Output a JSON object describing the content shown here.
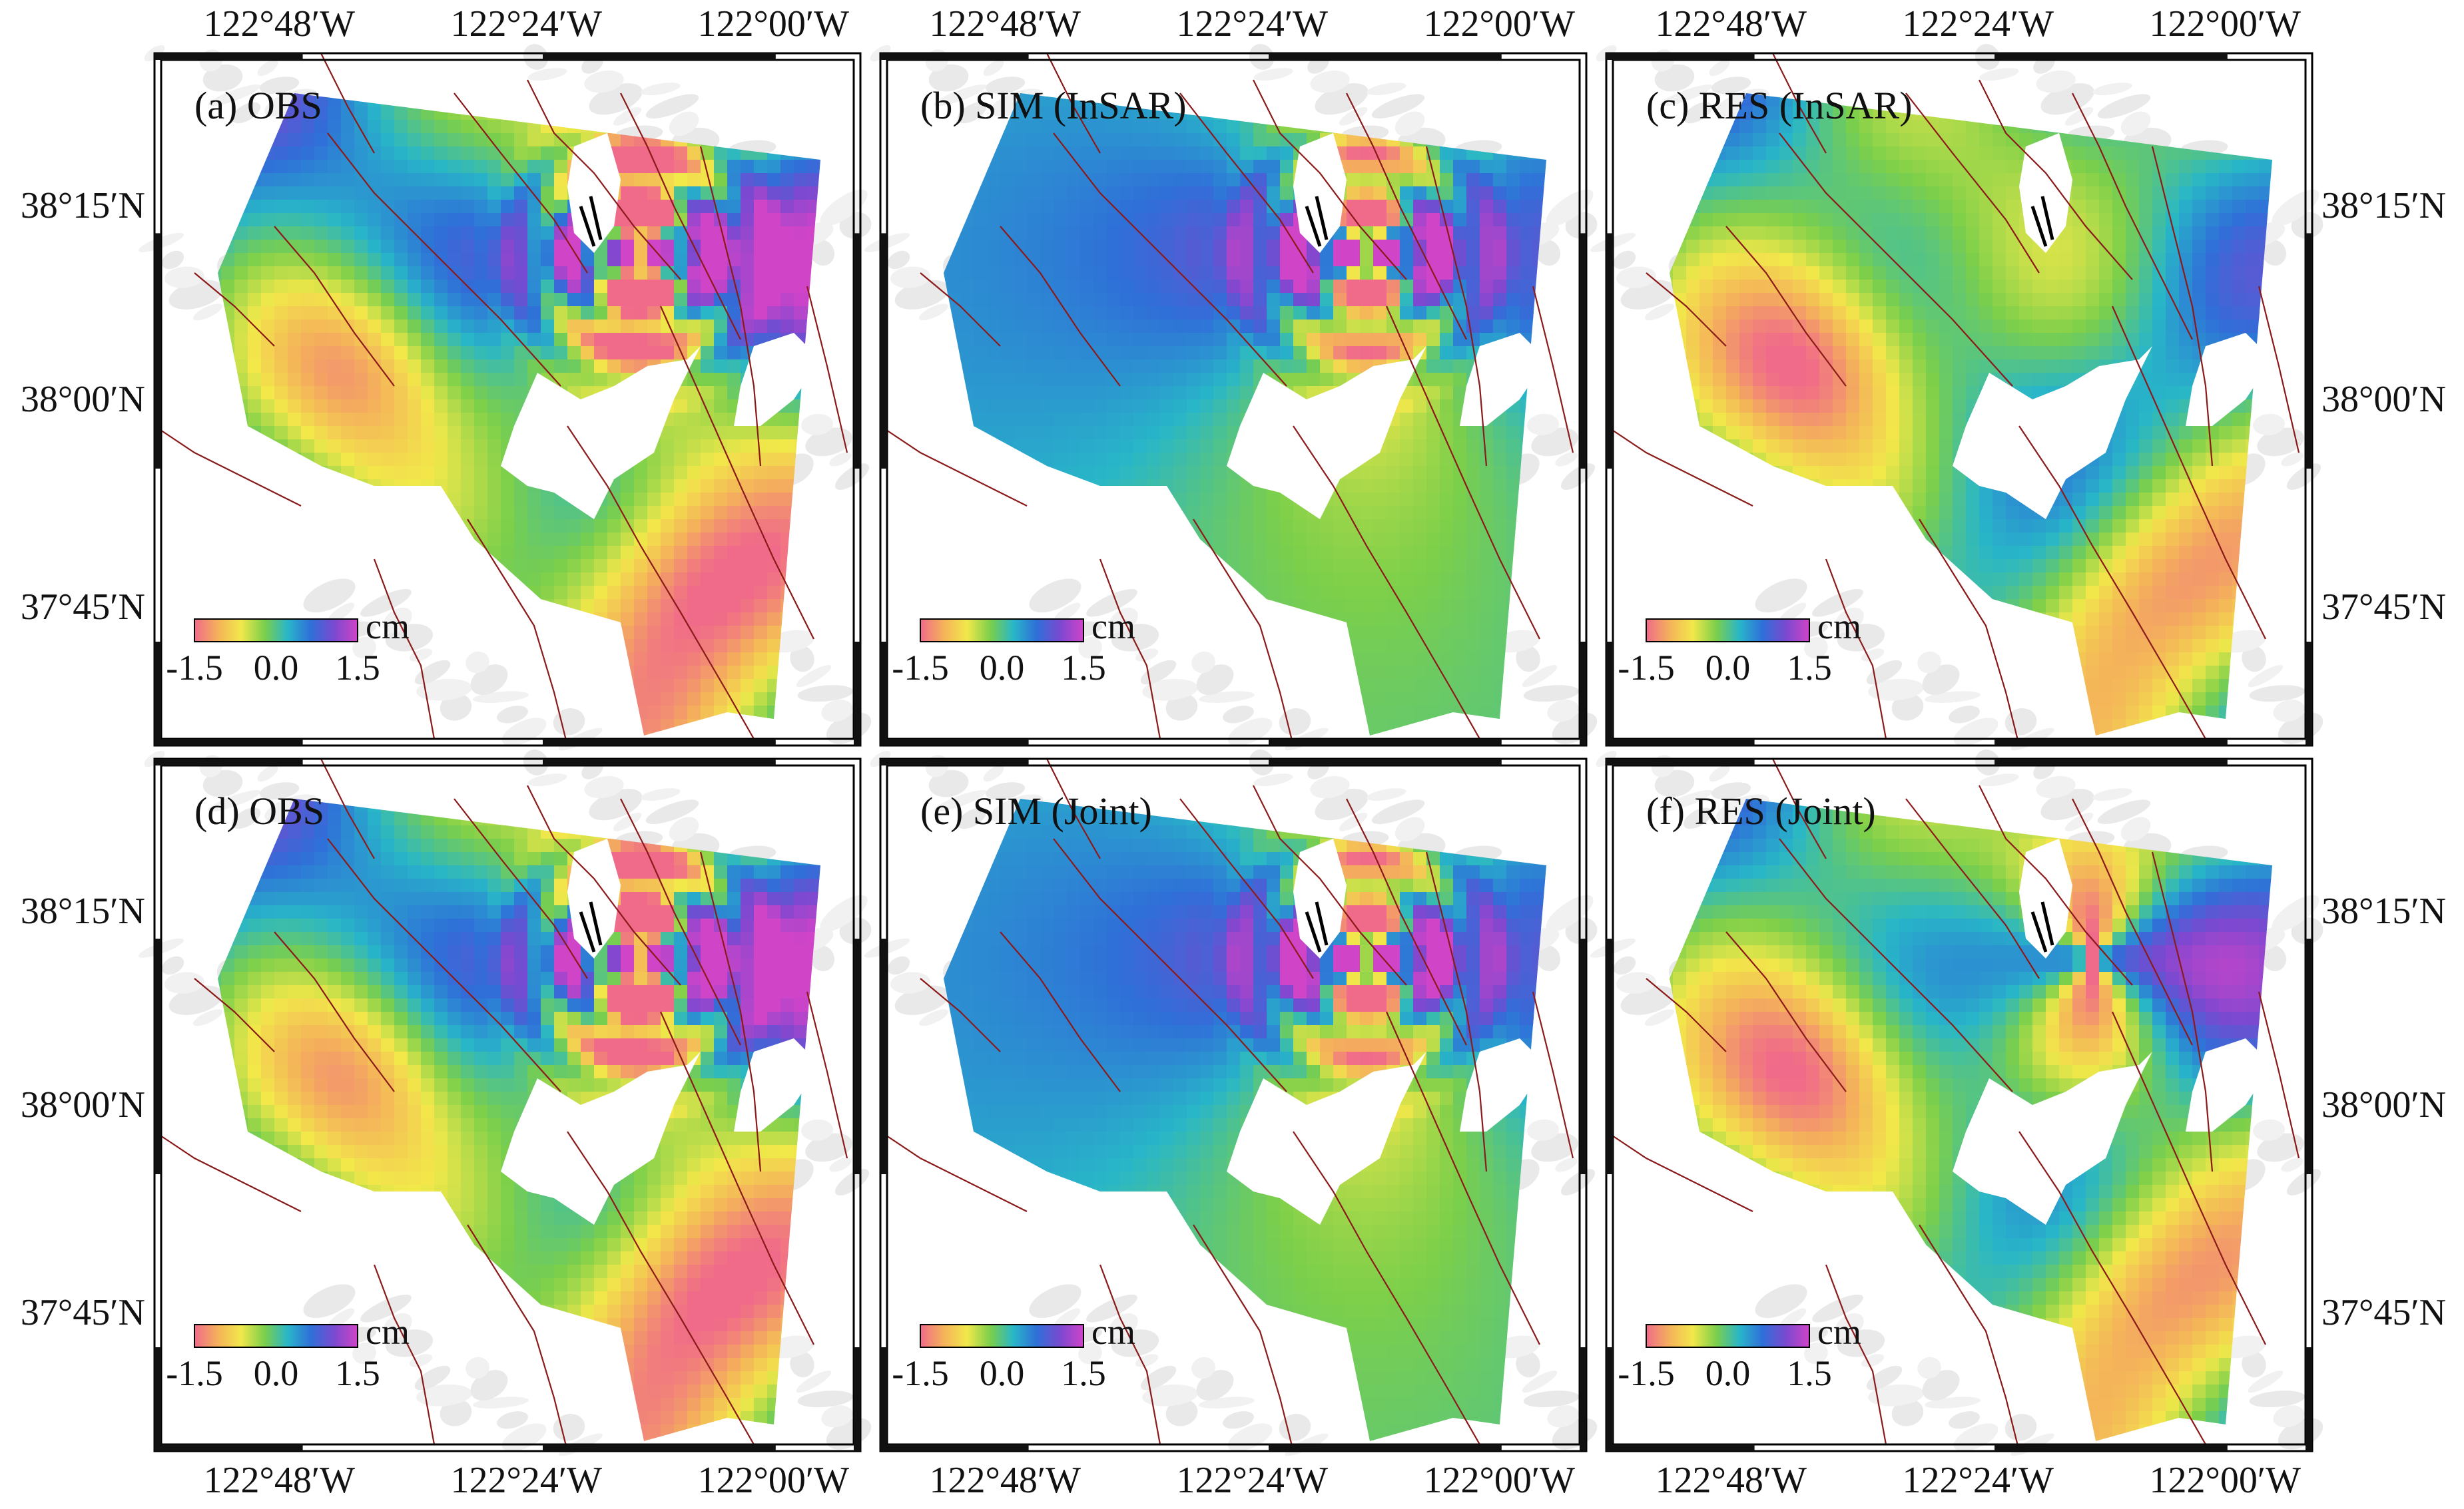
{
  "figure": {
    "panels": [
      {
        "id": "a",
        "title": "(a) OBS",
        "kind": "obs",
        "lon_labels_top": true,
        "lon_labels_bottom": false,
        "lat_labels": "left"
      },
      {
        "id": "b",
        "title": "(b) SIM (InSAR)",
        "kind": "sim1",
        "lon_labels_top": true,
        "lon_labels_bottom": false,
        "lat_labels": "none"
      },
      {
        "id": "c",
        "title": "(c) RES (InSAR)",
        "kind": "res1",
        "lon_labels_top": true,
        "lon_labels_bottom": false,
        "lat_labels": "right"
      },
      {
        "id": "d",
        "title": "(d) OBS",
        "kind": "obs",
        "lon_labels_top": false,
        "lon_labels_bottom": true,
        "lat_labels": "left"
      },
      {
        "id": "e",
        "title": "(e) SIM (Joint)",
        "kind": "sim2",
        "lon_labels_top": false,
        "lon_labels_bottom": true,
        "lat_labels": "none"
      },
      {
        "id": "f",
        "title": "(f) RES (Joint)",
        "kind": "res2",
        "lon_labels_top": false,
        "lon_labels_bottom": true,
        "lat_labels": "right"
      }
    ],
    "lon_ticks": [
      "122°48′W",
      "122°24′W",
      "122°00′W"
    ],
    "lat_ticks": [
      "38°15′N",
      "38°00′N",
      "37°45′N"
    ],
    "colorbar": {
      "unit": "cm",
      "tick_labels": [
        "-1.5",
        "0.0",
        "1.5"
      ],
      "range": [
        -1.5,
        1.5
      ],
      "colors": [
        "#f06a8a",
        "#f4b25a",
        "#f2e84a",
        "#7ccf4a",
        "#28b6c8",
        "#2f6fd8",
        "#7a49d0",
        "#d044c8"
      ]
    },
    "fault_color": "#8b1a1a",
    "land_color": "#ffffff"
  }
}
